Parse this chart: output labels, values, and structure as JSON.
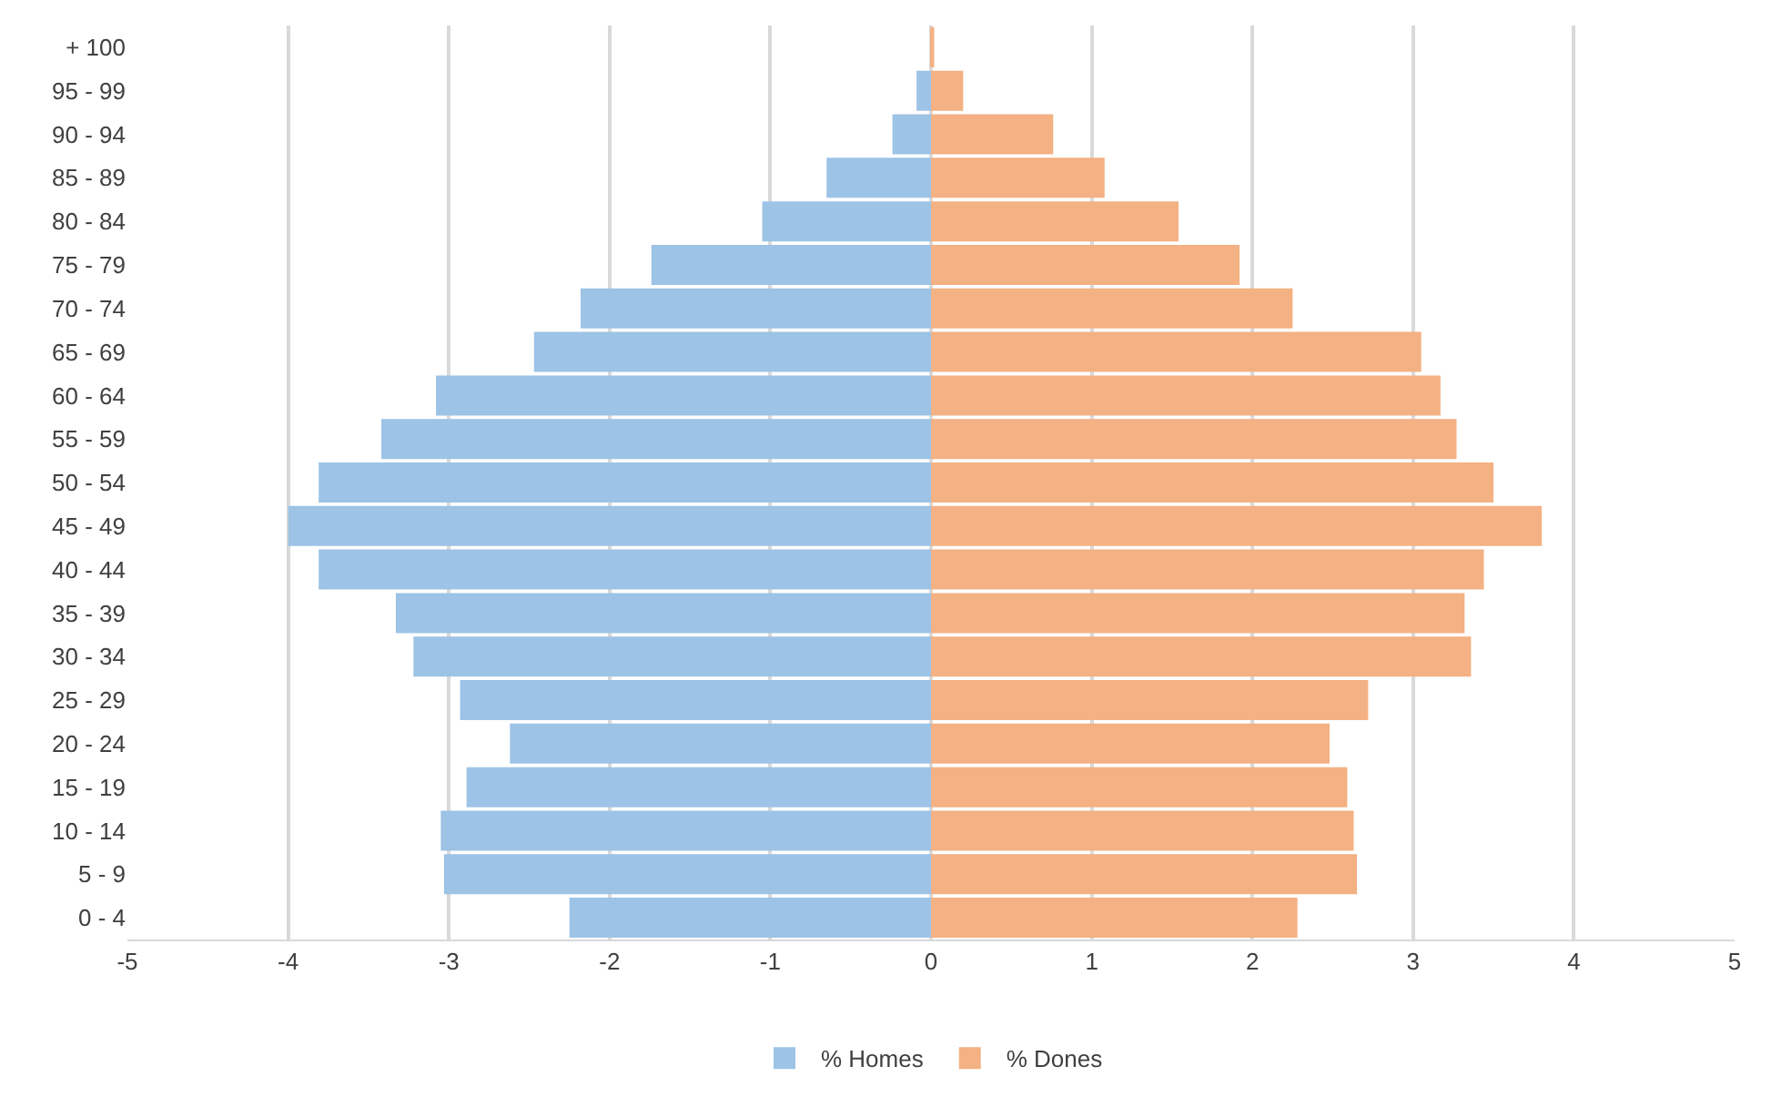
{
  "chart_data": {
    "type": "bar",
    "orientation": "horizontal",
    "stacked": true,
    "categories": [
      "+ 100",
      "95 - 99",
      "90 - 94",
      "85 - 89",
      "80 - 84",
      "75 - 79",
      "70 - 74",
      "65 - 69",
      "60 - 64",
      "55 - 59",
      "50 - 54",
      "45 - 49",
      "40 - 44",
      "35 - 39",
      "30 - 34",
      "25 - 29",
      "20 - 24",
      "15 - 19",
      "10 - 14",
      "5 - 9",
      "0 - 4"
    ],
    "series": [
      {
        "name": "% Homes",
        "color": "#9dc3e6",
        "values": [
          0,
          -0.09,
          -0.24,
          -0.65,
          -1.05,
          -1.74,
          -2.18,
          -2.47,
          -3.08,
          -3.42,
          -3.81,
          -4.0,
          -3.81,
          -3.33,
          -3.22,
          -2.93,
          -2.62,
          -2.89,
          -3.05,
          -3.03,
          -2.25
        ]
      },
      {
        "name": "% Dones",
        "color": "#f4b183",
        "values": [
          0.02,
          0.2,
          0.76,
          1.08,
          1.54,
          1.92,
          2.25,
          3.05,
          3.17,
          3.27,
          3.5,
          3.8,
          3.44,
          3.32,
          3.36,
          2.72,
          2.48,
          2.59,
          2.63,
          2.65,
          2.28
        ]
      }
    ],
    "xlim": [
      -5,
      5
    ],
    "xticks": [
      -5,
      -4,
      -3,
      -2,
      -1,
      0,
      1,
      2,
      3,
      4,
      5
    ],
    "grid": "x",
    "legend": "bottom"
  }
}
